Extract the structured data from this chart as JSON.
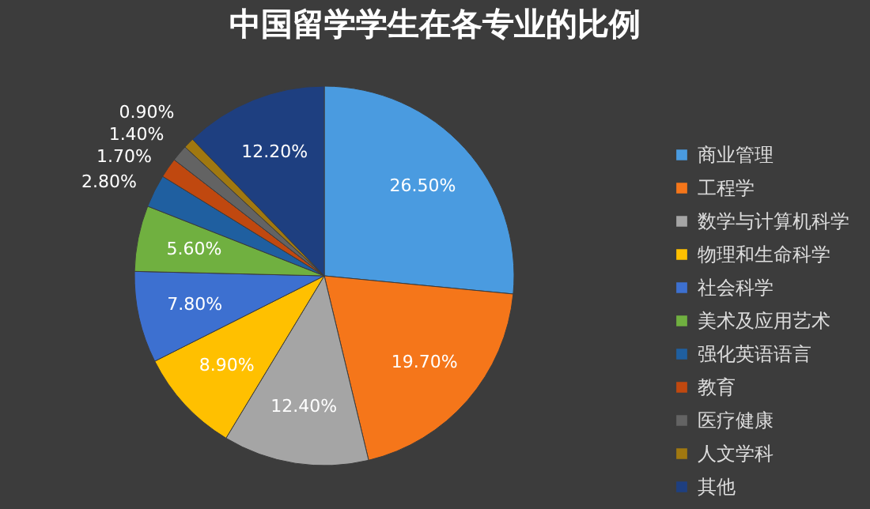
{
  "chart_data": {
    "type": "pie",
    "title": "中国留学学生在各专业的比例",
    "categories": [
      "商业管理",
      "工程学",
      "数学与计算机科学",
      "物理和生命科学",
      "社会科学",
      "美术及应用艺术",
      "强化英语语言",
      "教育",
      "医疗健康",
      "人文学科",
      "其他"
    ],
    "values": [
      26.5,
      19.7,
      12.4,
      8.9,
      7.8,
      5.6,
      2.8,
      1.7,
      1.4,
      0.9,
      12.2
    ],
    "colors": [
      "#4a9be0",
      "#f5761a",
      "#a5a5a5",
      "#ffc000",
      "#3d70d0",
      "#70b040",
      "#1f5fa0",
      "#c0480f",
      "#636363",
      "#a07810",
      "#1e3f80"
    ],
    "value_labels": [
      "26.50%",
      "19.70%",
      "12.40%",
      "8.90%",
      "7.80%",
      "5.60%",
      "2.80%",
      "1.70%",
      "1.40%",
      "0.90%",
      "12.20%"
    ],
    "legend": "right"
  }
}
